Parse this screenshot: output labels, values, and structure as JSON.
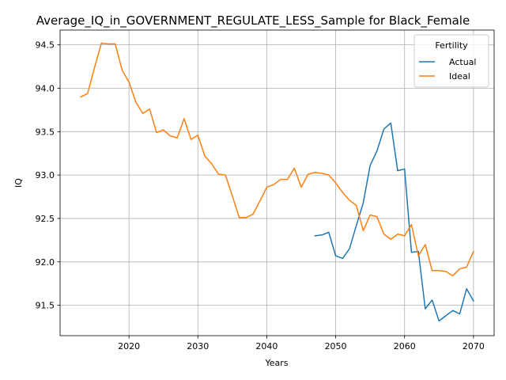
{
  "chart_data": {
    "type": "line",
    "title": "Average_IQ_in_GOVERNMENT_REGULATE_LESS_Sample for Black_Female",
    "xlabel": "Years",
    "ylabel": "IQ",
    "xlim": [
      2010,
      2073
    ],
    "ylim": [
      91.15,
      94.67
    ],
    "grid": true,
    "legend": {
      "title": "Fertility",
      "placement": "top-right"
    },
    "x_ticks": [
      2020,
      2030,
      2040,
      2050,
      2060,
      2070
    ],
    "y_ticks": [
      91.5,
      92.0,
      92.5,
      93.0,
      93.5,
      94.0,
      94.5
    ],
    "x_tick_labels": [
      "2020",
      "2030",
      "2040",
      "2050",
      "2060",
      "2070"
    ],
    "y_tick_labels": [
      "91.5",
      "92.0",
      "92.5",
      "93.0",
      "93.5",
      "94.0",
      "94.5"
    ],
    "series": [
      {
        "name": "Actual",
        "color": "#1f77b4",
        "x": [
          2047,
          2048,
          2049,
          2050,
          2051,
          2052,
          2053,
          2054,
          2055,
          2056,
          2057,
          2058,
          2059,
          2060,
          2061,
          2062,
          2063,
          2064,
          2065,
          2066,
          2067,
          2068,
          2069,
          2070
        ],
        "y": [
          92.3,
          92.31,
          92.34,
          92.07,
          92.04,
          92.15,
          92.42,
          92.68,
          93.11,
          93.28,
          93.53,
          93.6,
          93.05,
          93.07,
          92.11,
          92.12,
          91.46,
          91.56,
          91.32,
          91.38,
          91.44,
          91.4,
          91.69,
          91.55
        ]
      },
      {
        "name": "Ideal",
        "color": "#ff7f0e",
        "x": [
          2013,
          2014,
          2015,
          2016,
          2017,
          2018,
          2019,
          2020,
          2021,
          2022,
          2023,
          2024,
          2025,
          2026,
          2027,
          2028,
          2029,
          2030,
          2031,
          2032,
          2033,
          2034,
          2035,
          2036,
          2037,
          2038,
          2039,
          2040,
          2041,
          2042,
          2043,
          2044,
          2045,
          2046,
          2047,
          2048,
          2049,
          2050,
          2051,
          2052,
          2053,
          2054,
          2055,
          2056,
          2057,
          2058,
          2059,
          2060,
          2061,
          2062,
          2063,
          2064,
          2065,
          2066,
          2067,
          2068,
          2069,
          2070
        ],
        "y": [
          93.9,
          93.94,
          94.24,
          94.52,
          94.51,
          94.51,
          94.21,
          94.07,
          93.84,
          93.71,
          93.76,
          93.49,
          93.52,
          93.45,
          93.43,
          93.65,
          93.41,
          93.46,
          93.22,
          93.13,
          93.01,
          93.0,
          92.76,
          92.51,
          92.51,
          92.55,
          92.7,
          92.86,
          92.89,
          92.95,
          92.95,
          93.08,
          92.86,
          93.01,
          93.03,
          93.02,
          93.0,
          92.91,
          92.8,
          92.71,
          92.65,
          92.36,
          92.54,
          92.52,
          92.32,
          92.26,
          92.32,
          92.3,
          92.43,
          92.07,
          92.2,
          91.9,
          91.9,
          91.89,
          91.84,
          91.92,
          91.94,
          92.12
        ]
      }
    ]
  }
}
